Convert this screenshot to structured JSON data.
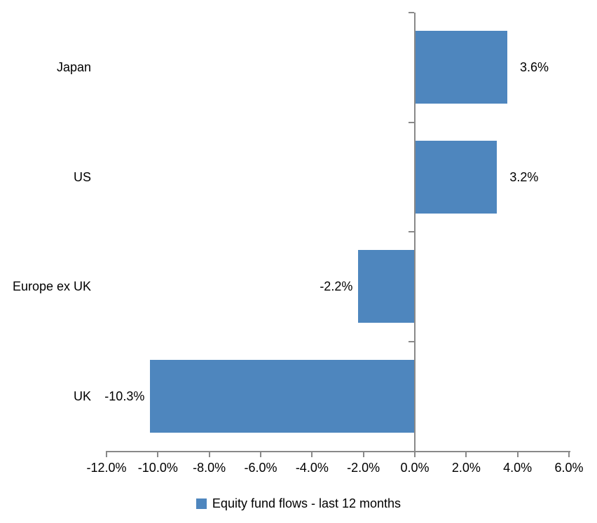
{
  "chart_data": {
    "type": "bar",
    "orientation": "horizontal",
    "title": "",
    "xlabel": "",
    "ylabel": "",
    "categories": [
      "Japan",
      "US",
      "Europe ex UK",
      "UK"
    ],
    "series": [
      {
        "name": "Equity fund flows - last 12 months",
        "values": [
          3.6,
          3.2,
          -2.2,
          -10.3
        ]
      }
    ],
    "data_labels": [
      "3.6%",
      "3.2%",
      "-2.2%",
      "-10.3%"
    ],
    "x_axis": {
      "min": -12,
      "max": 6,
      "tick_step": 2,
      "ticks": [
        {
          "value": -12,
          "label": "-12.0%"
        },
        {
          "value": -10,
          "label": "-10.0%"
        },
        {
          "value": -8,
          "label": "-8.0%"
        },
        {
          "value": -6,
          "label": "-6.0%"
        },
        {
          "value": -4,
          "label": "-4.0%"
        },
        {
          "value": -2,
          "label": "-2.0%"
        },
        {
          "value": 0,
          "label": "0.0%"
        },
        {
          "value": 2,
          "label": "2.0%"
        },
        {
          "value": 4,
          "label": "4.0%"
        },
        {
          "value": 6,
          "label": "6.0%"
        }
      ]
    },
    "grid": false,
    "legend": {
      "position": "bottom",
      "entries": [
        {
          "label": "Equity fund flows - last 12 months",
          "color": "#4E86BE"
        }
      ]
    },
    "colors": {
      "bar": "#4E86BE",
      "axis": "#898989",
      "text": "#000000",
      "background": "#FFFFFF"
    }
  }
}
